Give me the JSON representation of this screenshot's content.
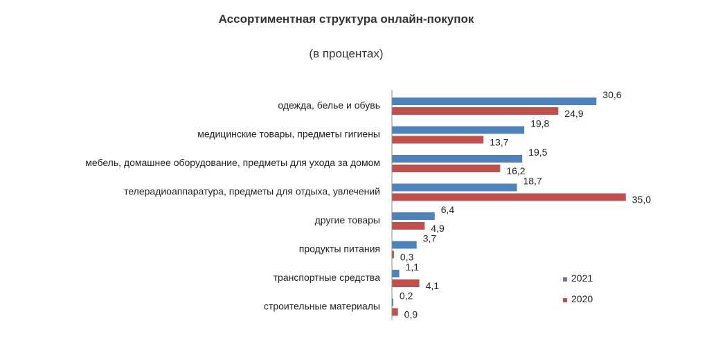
{
  "chart_data": {
    "type": "bar",
    "orientation": "horizontal",
    "title": "Ассортиментная структура онлайн-покупок",
    "subtitle": "(в процентах)",
    "categories": [
      "одежда, белье и обувь",
      "медицинские товары, предметы гигиены",
      "мебель, домашнее оборудование, предметы для ухода за домом",
      "телерадиоаппаратура, предметы для отдыха, увлечений",
      "другие товары",
      "продукты питания",
      "транспортные средства",
      "строительные материалы"
    ],
    "series": [
      {
        "name": "2021",
        "color": "#4f81bd",
        "values": [
          30.6,
          19.8,
          19.5,
          18.7,
          6.4,
          3.7,
          1.1,
          0.2
        ],
        "labels": [
          "30,6",
          "19,8",
          "19,5",
          "18,7",
          "6,4",
          "3,7",
          "1,1",
          "0,2"
        ]
      },
      {
        "name": "2020",
        "color": "#c0504d",
        "values": [
          24.9,
          13.7,
          16.2,
          35.0,
          4.9,
          0.3,
          4.1,
          0.9
        ],
        "labels": [
          "24,9",
          "13,7",
          "16,2",
          "35,0",
          "4,9",
          "0,3",
          "4,1",
          "0,9"
        ]
      }
    ],
    "xlim": [
      0,
      35
    ],
    "grid": false,
    "legend_position": "bottom-right"
  }
}
